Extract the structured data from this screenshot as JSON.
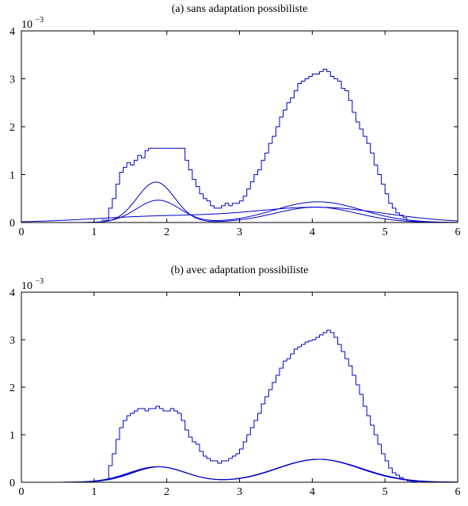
{
  "chart_data": [
    {
      "type": "line",
      "title": "(a) sans adaptation possibiliste",
      "xlabel": "",
      "ylabel": "",
      "xlim": [
        0,
        6
      ],
      "ylim": [
        0,
        4
      ],
      "xticks": [
        0,
        1,
        2,
        3,
        4,
        5,
        6
      ],
      "yticks": [
        0,
        1,
        2,
        3,
        4
      ],
      "y_multiplier": {
        "base": "10",
        "exponent": "−3"
      },
      "grid": false,
      "line_color": "#0000cc",
      "histogram_step": {
        "x": [
          1.1,
          1.2,
          1.25,
          1.3,
          1.35,
          1.4,
          1.45,
          1.5,
          1.55,
          1.6,
          1.65,
          1.7,
          1.75,
          1.8,
          2.25,
          2.3,
          2.35,
          2.4,
          2.45,
          2.5,
          2.55,
          2.6,
          2.65,
          2.7,
          2.75,
          2.8,
          2.85,
          2.9,
          2.95,
          3.0,
          3.05,
          3.1,
          3.15,
          3.2,
          3.25,
          3.3,
          3.35,
          3.4,
          3.45,
          3.5,
          3.55,
          3.6,
          3.65,
          3.7,
          3.75,
          3.8,
          3.85,
          3.9,
          3.95,
          4.0,
          4.05,
          4.1,
          4.15,
          4.2,
          4.25,
          4.3,
          4.35,
          4.4,
          4.45,
          4.5,
          4.55,
          4.6,
          4.65,
          4.7,
          4.75,
          4.8,
          4.85,
          4.9,
          4.95,
          5.0,
          5.05,
          5.1,
          5.15,
          5.2,
          5.25,
          5.3,
          5.35,
          5.4,
          5.45,
          5.5
        ],
        "y": [
          0.05,
          0.3,
          0.5,
          0.8,
          1.05,
          1.15,
          1.25,
          1.2,
          1.3,
          1.4,
          1.35,
          1.5,
          1.55,
          1.55,
          1.3,
          1.1,
          0.9,
          0.75,
          0.6,
          0.5,
          0.45,
          0.35,
          0.3,
          0.3,
          0.35,
          0.4,
          0.35,
          0.4,
          0.4,
          0.45,
          0.55,
          0.7,
          0.85,
          1.0,
          1.1,
          1.3,
          1.45,
          1.65,
          1.8,
          2.0,
          2.2,
          2.35,
          2.5,
          2.6,
          2.75,
          2.9,
          2.95,
          3.0,
          3.05,
          3.1,
          3.1,
          3.15,
          3.2,
          3.15,
          3.05,
          3.0,
          2.95,
          2.8,
          2.75,
          2.55,
          2.3,
          2.1,
          1.95,
          1.8,
          1.65,
          1.45,
          1.2,
          1.0,
          0.8,
          0.6,
          0.4,
          0.3,
          0.2,
          0.15,
          0.1,
          0.05,
          0.03,
          0.02,
          0.01,
          0.0
        ]
      },
      "mixtures": [
        {
          "weights": [
            0.55,
            0.45
          ],
          "means": [
            1.85,
            4.05
          ],
          "sigmas": [
            0.26,
            0.56
          ]
        },
        {
          "weights": [
            0.35,
            0.65
          ],
          "means": [
            1.88,
            4.08
          ],
          "sigmas": [
            0.3,
            0.6
          ]
        },
        {
          "weights": [
            0.3,
            0.7
          ],
          "means": [
            1.92,
            4.1
          ],
          "sigmas": [
            0.95,
            0.9
          ]
        }
      ]
    },
    {
      "type": "line",
      "title": "(b) avec adaptation possibiliste",
      "xlabel": "",
      "ylabel": "",
      "xlim": [
        0,
        6
      ],
      "ylim": [
        0,
        4
      ],
      "xticks": [
        0,
        1,
        2,
        3,
        4,
        5,
        6
      ],
      "yticks": [
        0,
        1,
        2,
        3,
        4
      ],
      "y_multiplier": {
        "base": "10",
        "exponent": "−3"
      },
      "grid": false,
      "line_color": "#0000cc",
      "histogram_step": {
        "x": [
          1.15,
          1.2,
          1.25,
          1.3,
          1.35,
          1.4,
          1.45,
          1.5,
          1.55,
          1.6,
          1.65,
          1.7,
          1.75,
          1.8,
          1.85,
          1.9,
          1.95,
          2.0,
          2.05,
          2.1,
          2.15,
          2.2,
          2.25,
          2.3,
          2.35,
          2.4,
          2.45,
          2.5,
          2.55,
          2.6,
          2.65,
          2.7,
          2.75,
          2.8,
          2.85,
          2.9,
          2.95,
          3.0,
          3.05,
          3.1,
          3.15,
          3.2,
          3.25,
          3.3,
          3.35,
          3.4,
          3.45,
          3.5,
          3.55,
          3.6,
          3.65,
          3.7,
          3.75,
          3.8,
          3.85,
          3.9,
          3.95,
          4.0,
          4.05,
          4.1,
          4.15,
          4.2,
          4.25,
          4.3,
          4.35,
          4.4,
          4.45,
          4.5,
          4.55,
          4.6,
          4.65,
          4.7,
          4.75,
          4.8,
          4.85,
          4.9,
          4.95,
          5.0,
          5.05,
          5.1,
          5.15,
          5.2,
          5.25,
          5.3,
          5.35,
          5.4,
          5.45,
          5.5
        ],
        "y": [
          0.05,
          0.35,
          0.6,
          0.9,
          1.15,
          1.3,
          1.4,
          1.45,
          1.5,
          1.55,
          1.55,
          1.5,
          1.55,
          1.55,
          1.6,
          1.55,
          1.5,
          1.5,
          1.55,
          1.5,
          1.45,
          1.3,
          1.1,
          0.95,
          0.85,
          0.8,
          0.65,
          0.55,
          0.5,
          0.45,
          0.45,
          0.4,
          0.45,
          0.45,
          0.5,
          0.55,
          0.6,
          0.7,
          0.85,
          1.0,
          1.15,
          1.3,
          1.45,
          1.65,
          1.8,
          1.95,
          2.1,
          2.25,
          2.4,
          2.55,
          2.6,
          2.7,
          2.8,
          2.85,
          2.9,
          2.95,
          2.98,
          3.0,
          3.05,
          3.1,
          3.15,
          3.2,
          3.15,
          3.05,
          2.9,
          2.75,
          2.6,
          2.45,
          2.25,
          2.05,
          1.85,
          1.6,
          1.4,
          1.2,
          1.0,
          0.8,
          0.6,
          0.45,
          0.3,
          0.2,
          0.15,
          0.1,
          0.05,
          0.03,
          0.02,
          0.01,
          0.0,
          0.0
        ]
      },
      "mixtures": [
        {
          "weights": [
            0.31,
            0.69
          ],
          "means": [
            1.88,
            4.08
          ],
          "sigmas": [
            0.38,
            0.57
          ]
        },
        {
          "weights": [
            0.3,
            0.7
          ],
          "means": [
            1.9,
            4.1
          ],
          "sigmas": [
            0.37,
            0.58
          ]
        },
        {
          "weights": [
            0.32,
            0.68
          ],
          "means": [
            1.87,
            4.09
          ],
          "sigmas": [
            0.39,
            0.56
          ]
        }
      ]
    }
  ]
}
